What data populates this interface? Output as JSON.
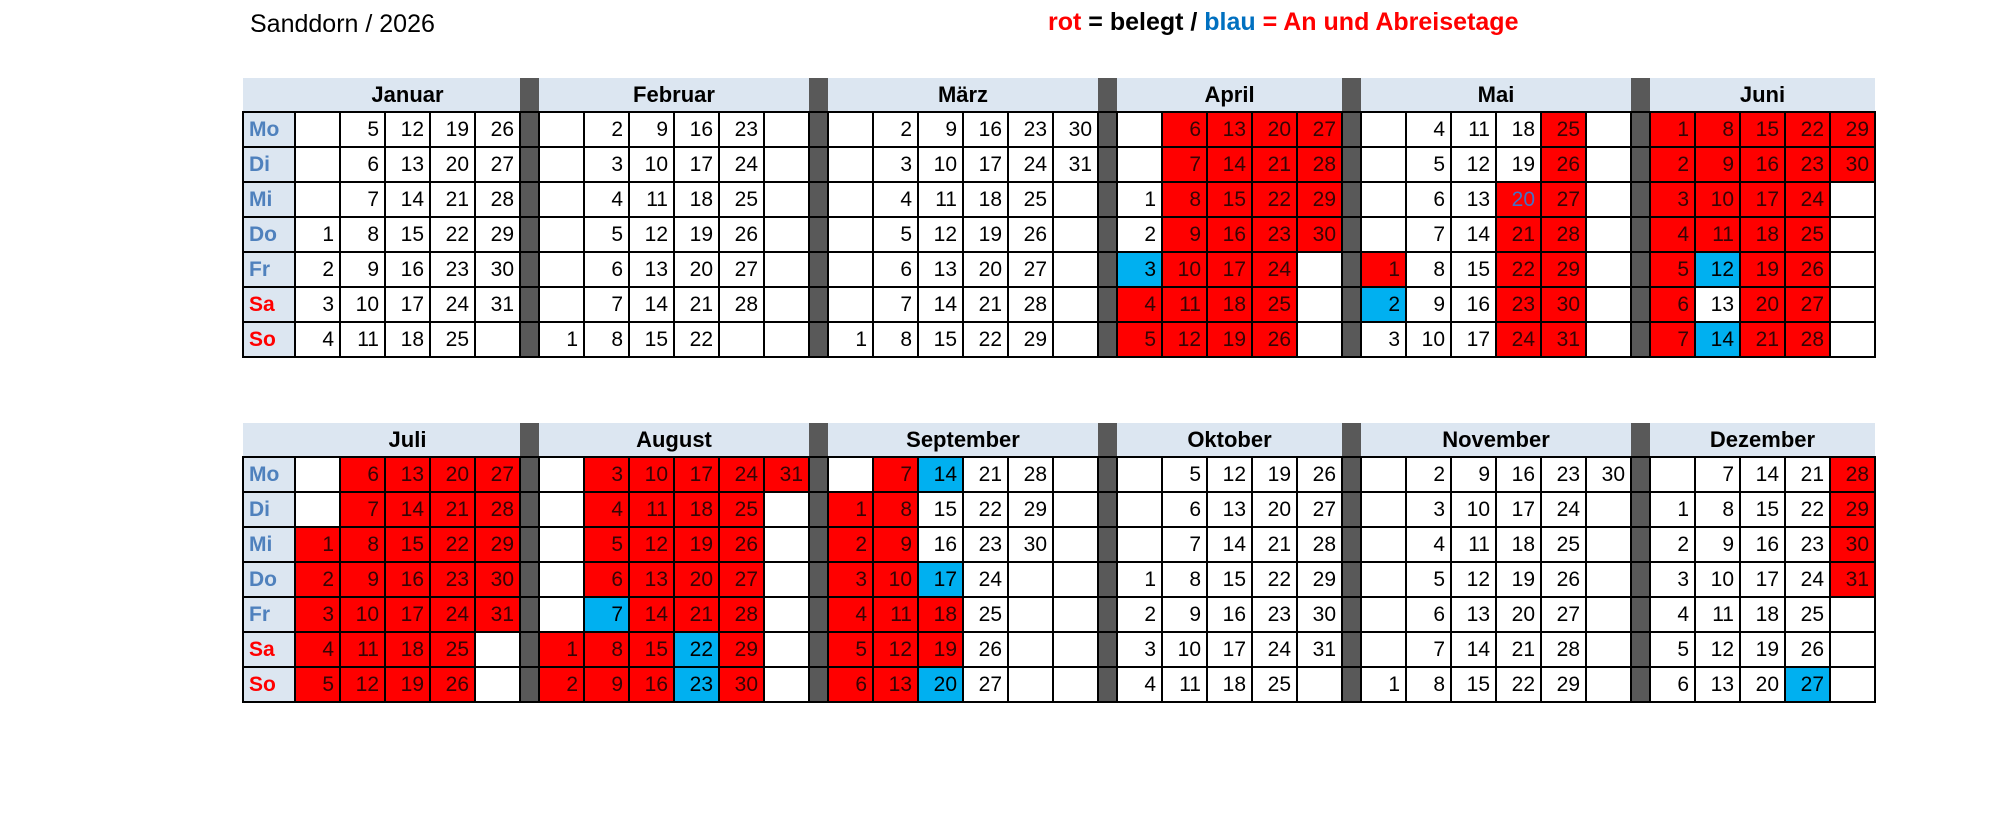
{
  "title": "Sanddorn / 2026",
  "legend": {
    "parts": [
      {
        "text": "rot",
        "color": "#FF0000"
      },
      {
        "text": " = belegt / ",
        "color": "#000000"
      },
      {
        "text": "blau",
        "color": "#0070C0"
      },
      {
        "text": " = An und Abreisetage",
        "color": "#FF0000"
      }
    ]
  },
  "colors": {
    "booked_red": "#FF0000",
    "travel_blue": "#00B0F0",
    "header_bg": "#DCE6F1",
    "separator_gray": "#595959",
    "weekday_label_blue": "#4F81BD",
    "weekend_label_red": "#FF0000",
    "booked_travel_number_blue": "#4472C4"
  },
  "weekdays": [
    "Mo",
    "Di",
    "Mi",
    "Do",
    "Fr",
    "Sa",
    "So"
  ],
  "cell_codes": {
    "": "empty",
    "n": "free",
    "nr": "booked",
    "nb": "travel",
    "nx": "booked-with-travel-number"
  },
  "tables": [
    {
      "months": [
        {
          "name": "Januar",
          "cols": 5,
          "rows": [
            [
              "",
              "5",
              "12",
              "19",
              "26"
            ],
            [
              "",
              "6",
              "13",
              "20",
              "27"
            ],
            [
              "",
              "7",
              "14",
              "21",
              "28"
            ],
            [
              "1",
              "8",
              "15",
              "22",
              "29"
            ],
            [
              "2",
              "9",
              "16",
              "23",
              "30"
            ],
            [
              "3",
              "10",
              "17",
              "24",
              "31"
            ],
            [
              "4",
              "11",
              "18",
              "25",
              ""
            ]
          ]
        },
        {
          "name": "Februar",
          "cols": 6,
          "rows": [
            [
              "",
              "2",
              "9",
              "16",
              "23",
              ""
            ],
            [
              "",
              "3",
              "10",
              "17",
              "24",
              ""
            ],
            [
              "",
              "4",
              "11",
              "18",
              "25",
              ""
            ],
            [
              "",
              "5",
              "12",
              "19",
              "26",
              ""
            ],
            [
              "",
              "6",
              "13",
              "20",
              "27",
              ""
            ],
            [
              "",
              "7",
              "14",
              "21",
              "28",
              ""
            ],
            [
              "1",
              "8",
              "15",
              "22",
              "",
              ""
            ]
          ]
        },
        {
          "name": "März",
          "cols": 6,
          "rows": [
            [
              "",
              "2",
              "9",
              "16",
              "23",
              "30"
            ],
            [
              "",
              "3",
              "10",
              "17",
              "24",
              "31"
            ],
            [
              "",
              "4",
              "11",
              "18",
              "25",
              ""
            ],
            [
              "",
              "5",
              "12",
              "19",
              "26",
              ""
            ],
            [
              "",
              "6",
              "13",
              "20",
              "27",
              ""
            ],
            [
              "",
              "7",
              "14",
              "21",
              "28",
              ""
            ],
            [
              "1",
              "8",
              "15",
              "22",
              "29",
              ""
            ]
          ]
        },
        {
          "name": "April",
          "cols": 5,
          "rows": [
            [
              "",
              "6r",
              "13r",
              "20r",
              "27r"
            ],
            [
              "",
              "7r",
              "14r",
              "21r",
              "28r"
            ],
            [
              "1",
              "8r",
              "15r",
              "22r",
              "29r"
            ],
            [
              "2",
              "9r",
              "16r",
              "23r",
              "30r"
            ],
            [
              "3b",
              "10r",
              "17r",
              "24r",
              ""
            ],
            [
              "4r",
              "11r",
              "18r",
              "25r",
              ""
            ],
            [
              "5r",
              "12r",
              "19r",
              "26r",
              ""
            ]
          ]
        },
        {
          "name": "Mai",
          "cols": 6,
          "rows": [
            [
              "",
              "4",
              "11",
              "18",
              "25r",
              ""
            ],
            [
              "",
              "5",
              "12",
              "19",
              "26r",
              ""
            ],
            [
              "",
              "6",
              "13",
              "20x",
              "27r",
              ""
            ],
            [
              "",
              "7",
              "14",
              "21r",
              "28r",
              ""
            ],
            [
              "1r",
              "8",
              "15",
              "22r",
              "29r",
              ""
            ],
            [
              "2b",
              "9",
              "16",
              "23r",
              "30r",
              ""
            ],
            [
              "3",
              "10",
              "17",
              "24r",
              "31r",
              ""
            ]
          ]
        },
        {
          "name": "Juni",
          "cols": 5,
          "rows": [
            [
              "1r",
              "8r",
              "15r",
              "22r",
              "29r"
            ],
            [
              "2r",
              "9r",
              "16r",
              "23r",
              "30r"
            ],
            [
              "3r",
              "10r",
              "17r",
              "24r",
              ""
            ],
            [
              "4r",
              "11r",
              "18r",
              "25r",
              ""
            ],
            [
              "5r",
              "12b",
              "19r",
              "26r",
              ""
            ],
            [
              "6r",
              "13",
              "20r",
              "27r",
              ""
            ],
            [
              "7r",
              "14b",
              "21r",
              "28r",
              ""
            ]
          ]
        }
      ]
    },
    {
      "months": [
        {
          "name": "Juli",
          "cols": 5,
          "rows": [
            [
              "",
              "6r",
              "13r",
              "20r",
              "27r"
            ],
            [
              "",
              "7r",
              "14r",
              "21r",
              "28r"
            ],
            [
              "1r",
              "8r",
              "15r",
              "22r",
              "29r"
            ],
            [
              "2r",
              "9r",
              "16r",
              "23r",
              "30r"
            ],
            [
              "3r",
              "10r",
              "17r",
              "24r",
              "31r"
            ],
            [
              "4r",
              "11r",
              "18r",
              "25r",
              ""
            ],
            [
              "5r",
              "12r",
              "19r",
              "26r",
              ""
            ]
          ]
        },
        {
          "name": "August",
          "cols": 6,
          "rows": [
            [
              "",
              "3r",
              "10r",
              "17r",
              "24r",
              "31r"
            ],
            [
              "",
              "4r",
              "11r",
              "18r",
              "25r",
              ""
            ],
            [
              "",
              "5r",
              "12r",
              "19r",
              "26r",
              ""
            ],
            [
              "",
              "6r",
              "13r",
              "20r",
              "27r",
              ""
            ],
            [
              "",
              "7b",
              "14r",
              "21r",
              "28r",
              ""
            ],
            [
              "1r",
              "8r",
              "15r",
              "22b",
              "29r",
              ""
            ],
            [
              "2r",
              "9r",
              "16r",
              "23b",
              "30r",
              ""
            ]
          ]
        },
        {
          "name": "September",
          "cols": 6,
          "rows": [
            [
              "",
              "7r",
              "14b",
              "21",
              "28",
              ""
            ],
            [
              "1r",
              "8r",
              "15",
              "22",
              "29",
              ""
            ],
            [
              "2r",
              "9r",
              "16",
              "23",
              "30",
              ""
            ],
            [
              "3r",
              "10r",
              "17b",
              "24",
              "",
              ""
            ],
            [
              "4r",
              "11r",
              "18r",
              "25",
              "",
              ""
            ],
            [
              "5r",
              "12r",
              "19r",
              "26",
              "",
              ""
            ],
            [
              "6r",
              "13r",
              "20b",
              "27",
              "",
              ""
            ]
          ]
        },
        {
          "name": "Oktober",
          "cols": 5,
          "rows": [
            [
              "",
              "5",
              "12",
              "19",
              "26"
            ],
            [
              "",
              "6",
              "13",
              "20",
              "27"
            ],
            [
              "",
              "7",
              "14",
              "21",
              "28"
            ],
            [
              "1",
              "8",
              "15",
              "22",
              "29"
            ],
            [
              "2",
              "9",
              "16",
              "23",
              "30"
            ],
            [
              "3",
              "10",
              "17",
              "24",
              "31"
            ],
            [
              "4",
              "11",
              "18",
              "25",
              ""
            ]
          ]
        },
        {
          "name": "November",
          "cols": 6,
          "rows": [
            [
              "",
              "2",
              "9",
              "16",
              "23",
              "30"
            ],
            [
              "",
              "3",
              "10",
              "17",
              "24",
              ""
            ],
            [
              "",
              "4",
              "11",
              "18",
              "25",
              ""
            ],
            [
              "",
              "5",
              "12",
              "19",
              "26",
              ""
            ],
            [
              "",
              "6",
              "13",
              "20",
              "27",
              ""
            ],
            [
              "",
              "7",
              "14",
              "21",
              "28",
              ""
            ],
            [
              "1",
              "8",
              "15",
              "22",
              "29",
              ""
            ]
          ]
        },
        {
          "name": "Dezember",
          "cols": 5,
          "rows": [
            [
              "",
              "7",
              "14",
              "21",
              "28r"
            ],
            [
              "1",
              "8",
              "15",
              "22",
              "29r"
            ],
            [
              "2",
              "9",
              "16",
              "23",
              "30r"
            ],
            [
              "3",
              "10",
              "17",
              "24",
              "31r"
            ],
            [
              "4",
              "11",
              "18",
              "25",
              ""
            ],
            [
              "5",
              "12",
              "19",
              "26",
              ""
            ],
            [
              "6",
              "13",
              "20",
              "27b",
              ""
            ]
          ]
        }
      ]
    }
  ]
}
